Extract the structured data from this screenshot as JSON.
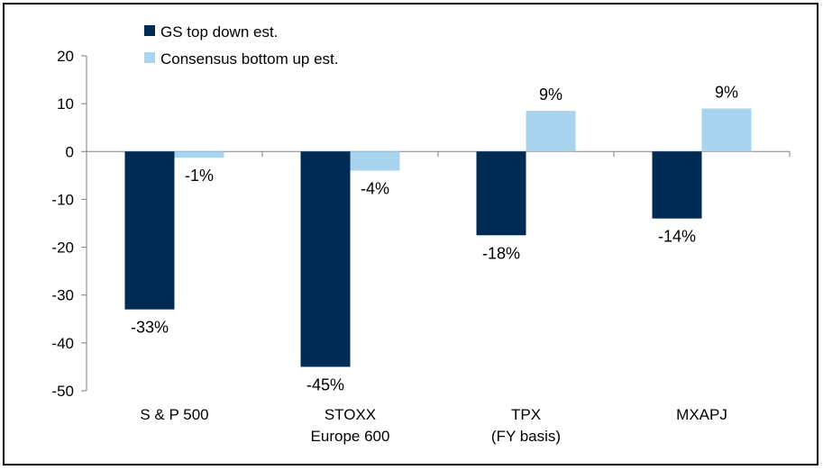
{
  "chart_data": {
    "type": "bar",
    "title": "",
    "xlabel": "",
    "ylabel": "",
    "ylim": [
      -50,
      20
    ],
    "yticks": [
      20,
      10,
      0,
      -10,
      -20,
      -30,
      -40,
      -50
    ],
    "categories": [
      [
        "S & P 500"
      ],
      [
        "STOXX",
        "Europe 600"
      ],
      [
        "TPX",
        "(FY basis)"
      ],
      [
        "MXAPJ"
      ]
    ],
    "series": [
      {
        "name": "GS top down est.",
        "color": "#002b54",
        "values": [
          -33,
          -45,
          -17.5,
          -14
        ],
        "labels": [
          "-33%",
          "-45%",
          "-18%",
          "-14%"
        ]
      },
      {
        "name": "Consensus bottom up est.",
        "color": "#a8d4f0",
        "values": [
          -1.3,
          -4,
          8.5,
          9
        ],
        "labels": [
          "-1%",
          "-4%",
          "9%",
          "9%"
        ]
      }
    ],
    "legend_position": "top-left",
    "grid": false
  }
}
